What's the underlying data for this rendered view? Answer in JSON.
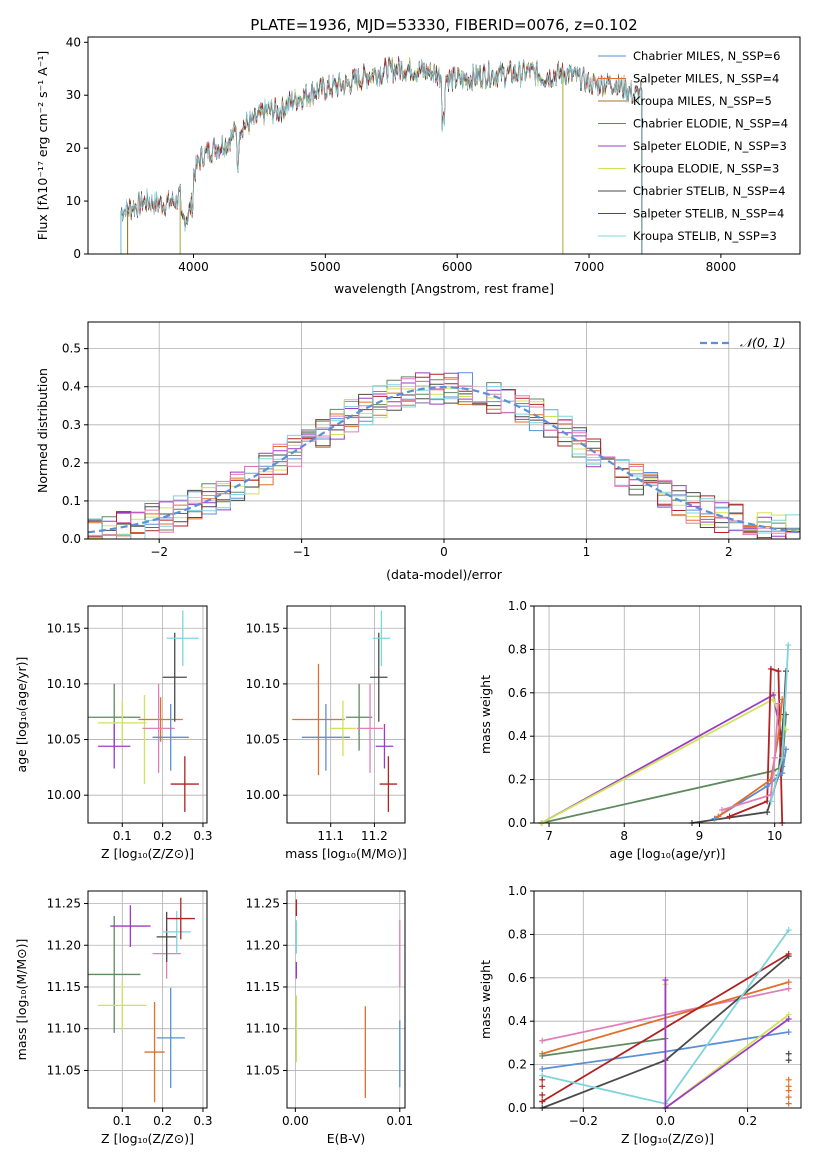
{
  "chart_data": [
    {
      "id": "spectrum",
      "type": "line",
      "title": "PLATE=1936, MJD=53330, FIBERID=0076, z=0.102",
      "xlabel": "wavelength [Angstrom, rest frame]",
      "ylabel": "Flux [fλ10⁻¹⁷ erg cm⁻² s⁻¹ A⁻¹]",
      "xlim": [
        3200,
        8600
      ],
      "ylim": [
        0,
        41
      ],
      "xticks": [
        "4000",
        "5000",
        "6000",
        "7000",
        "8000"
      ],
      "yticks": [
        "0",
        "10",
        "20",
        "30",
        "40"
      ],
      "legend_position": "right",
      "series": [
        {
          "name": "Chabrier MILES, N_SSP=6",
          "color": "#5b8fd6",
          "x_range": [
            3450,
            7400
          ]
        },
        {
          "name": "Salpeter MILES, N_SSP=4",
          "color": "#e0702a",
          "x_range": [
            3500,
            7400
          ]
        },
        {
          "name": "Kroupa MILES, N_SSP=5",
          "color": "#a07a22",
          "x_range": [
            3500,
            7400
          ]
        },
        {
          "name": "Chabrier ELODIE, N_SSP=4",
          "color": "#5e8a5e",
          "x_range": [
            3900,
            6800
          ]
        },
        {
          "name": "Salpeter ELODIE, N_SSP=3",
          "color": "#9c3cc4",
          "x_range": [
            3900,
            6800
          ]
        },
        {
          "name": "Kroupa ELODIE, N_SSP=3",
          "color": "#cfe35a",
          "x_range": [
            3900,
            6800
          ]
        },
        {
          "name": "Chabrier STELIB, N_SSP=4",
          "color": "#4a4a4a",
          "x_range": [
            3450,
            7400
          ]
        },
        {
          "name": "Salpeter STELIB, N_SSP=4",
          "color": "#b22222",
          "x_range": [
            3450,
            7400
          ]
        },
        {
          "name": "Kroupa STELIB, N_SSP=3",
          "color": "#7fd4dc",
          "x_range": [
            3450,
            7400
          ]
        }
      ],
      "continuum": {
        "x": [
          3450,
          3550,
          3650,
          3750,
          3850,
          3950,
          4050,
          4150,
          4250,
          4350,
          4450,
          4550,
          4650,
          4750,
          4850,
          4950,
          5050,
          5150,
          5250,
          5350,
          5450,
          5550,
          5650,
          5750,
          5850,
          5950,
          6050,
          6150,
          6250,
          6350,
          6450,
          6550,
          6650,
          6750,
          6850,
          6950,
          7050,
          7150,
          7250,
          7350,
          7400
        ],
        "y": [
          8,
          9,
          10,
          9.5,
          10,
          12,
          18,
          20,
          21,
          24,
          25,
          27,
          27,
          29,
          30,
          31,
          31.5,
          32,
          33,
          34,
          34.5,
          35,
          35,
          34.5,
          34,
          33,
          33,
          33.5,
          34,
          34,
          34,
          34.5,
          33.5,
          34,
          34,
          33,
          32,
          32.5,
          31.5,
          30,
          31
        ]
      }
    },
    {
      "id": "residual-histogram",
      "type": "histogram",
      "xlabel": "(data-model)/error",
      "ylabel": "Normed distribution",
      "xlim": [
        -2.5,
        2.5
      ],
      "ylim": [
        0,
        0.57
      ],
      "xticks": [
        "−2",
        "−1",
        "0",
        "1",
        "2"
      ],
      "yticks": [
        "0.0",
        "0.1",
        "0.2",
        "0.3",
        "0.4",
        "0.5"
      ],
      "grid": true,
      "legend_position": "top-right",
      "reference_curve": {
        "name": "N(0,1)",
        "legend_label": "𝒩(0, 1)",
        "color": "#5b8fd6",
        "style": "dashed",
        "mean": 0,
        "sigma": 1
      },
      "bin_width": 0.1,
      "series_colors": [
        "#5b8fd6",
        "#e0702a",
        "#5e8a5e",
        "#9c3cc4",
        "#cfe35a",
        "#4a4a4a",
        "#b22222",
        "#7fd4dc",
        "#e07fb8"
      ]
    },
    {
      "id": "age-vs-Z",
      "type": "errorbar",
      "xlabel": "Z [log₁₀(Z/Z⊙)]",
      "ylabel": "age  [log₁₀(age/yr)]",
      "xlim": [
        0.015,
        0.31
      ],
      "ylim": [
        9.975,
        10.17
      ],
      "xticks": [
        {
          "v": 0.1,
          "label": "0.1"
        },
        {
          "v": 0.2,
          "label": "0.2"
        },
        {
          "v": 0.3,
          "label": "0.3"
        }
      ],
      "yticks": [
        {
          "v": 10.0,
          "label": "10.00"
        },
        {
          "v": 10.05,
          "label": "10.05"
        },
        {
          "v": 10.1,
          "label": "10.10"
        },
        {
          "v": 10.15,
          "label": "10.15"
        }
      ],
      "grid": true,
      "points": [
        {
          "color": "#5e8a5e",
          "x": 0.08,
          "xerr": 0.065,
          "y": 10.07,
          "yerr": 0.03
        },
        {
          "color": "#cfe35a",
          "x": 0.1,
          "xerr": 0.06,
          "y": 10.065,
          "yerr": 0.02
        },
        {
          "color": "#9c3cc4",
          "x": 0.08,
          "xerr": 0.04,
          "y": 10.044,
          "yerr": 0.02
        },
        {
          "color": "#cfe35a",
          "x": 0.155,
          "xerr": 0.0,
          "y": 10.05,
          "yerr": 0.04
        },
        {
          "color": "#e0702a",
          "x": 0.195,
          "xerr": 0.055,
          "y": 10.068,
          "yerr": 0.02
        },
        {
          "color": "#e07fb8",
          "x": 0.19,
          "xerr": 0.04,
          "y": 10.06,
          "yerr": 0.04
        },
        {
          "color": "#5b8fd6",
          "x": 0.22,
          "xerr": 0.045,
          "y": 10.052,
          "yerr": 0.03
        },
        {
          "color": "#4a4a4a",
          "x": 0.23,
          "xerr": 0.03,
          "y": 10.106,
          "yerr": 0.04
        },
        {
          "color": "#7fd4dc",
          "x": 0.25,
          "xerr": 0.04,
          "y": 10.141,
          "yerr": 0.025
        },
        {
          "color": "#b22222",
          "x": 0.255,
          "xerr": 0.035,
          "y": 10.01,
          "yerr": 0.025
        }
      ]
    },
    {
      "id": "age-vs-mass",
      "type": "errorbar",
      "xlabel": "mass [log₁₀(M/M⊙)]",
      "ylabel": "",
      "xlim": [
        11.0,
        11.27
      ],
      "ylim": [
        9.975,
        10.17
      ],
      "xticks": [
        {
          "v": 11.1,
          "label": "11.1"
        },
        {
          "v": 11.2,
          "label": "11.2"
        }
      ],
      "yticks": [
        {
          "v": 10.0,
          "label": "10.00"
        },
        {
          "v": 10.05,
          "label": "10.05"
        },
        {
          "v": 10.1,
          "label": "10.10"
        },
        {
          "v": 10.15,
          "label": "10.15"
        }
      ],
      "grid": true,
      "points": [
        {
          "color": "#e0702a",
          "x": 11.072,
          "xerr": 0.06,
          "y": 10.068,
          "yerr": 0.05
        },
        {
          "color": "#5b8fd6",
          "x": 11.089,
          "xerr": 0.055,
          "y": 10.052,
          "yerr": 0.03
        },
        {
          "color": "#5e8a5e",
          "x": 11.165,
          "xerr": 0.03,
          "y": 10.07,
          "yerr": 0.03
        },
        {
          "color": "#cfe35a",
          "x": 11.128,
          "xerr": 0.03,
          "y": 10.06,
          "yerr": 0.025
        },
        {
          "color": "#e07fb8",
          "x": 11.19,
          "xerr": 0.03,
          "y": 10.06,
          "yerr": 0.04
        },
        {
          "color": "#9c3cc4",
          "x": 11.223,
          "xerr": 0.02,
          "y": 10.044,
          "yerr": 0.02
        },
        {
          "color": "#4a4a4a",
          "x": 11.21,
          "xerr": 0.02,
          "y": 10.106,
          "yerr": 0.04
        },
        {
          "color": "#7fd4dc",
          "x": 11.216,
          "xerr": 0.02,
          "y": 10.141,
          "yerr": 0.025
        },
        {
          "color": "#b22222",
          "x": 11.232,
          "xerr": 0.02,
          "y": 10.01,
          "yerr": 0.025
        }
      ]
    },
    {
      "id": "mass-weight-vs-age",
      "type": "line",
      "xlabel": "age  [log₁₀(age/yr)]",
      "ylabel": "mass weight",
      "xlim": [
        6.8,
        10.35
      ],
      "ylim": [
        0.0,
        1.0
      ],
      "xticks": [
        {
          "v": 7,
          "label": "7"
        },
        {
          "v": 8,
          "label": "8"
        },
        {
          "v": 9,
          "label": "9"
        },
        {
          "v": 10,
          "label": "10"
        }
      ],
      "yticks": [
        {
          "v": 0,
          "label": "0.0"
        },
        {
          "v": 0.2,
          "label": "0.2"
        },
        {
          "v": 0.4,
          "label": "0.4"
        },
        {
          "v": 0.6,
          "label": "0.6"
        },
        {
          "v": 0.8,
          "label": "0.8"
        },
        {
          "v": 1.0,
          "label": "1.0"
        }
      ],
      "grid": true,
      "series": [
        {
          "color": "#5e8a5e",
          "x": [
            6.9,
            9.98,
            10.1,
            10.15
          ],
          "y": [
            0.0,
            0.24,
            0.26,
            0.5
          ]
        },
        {
          "color": "#9c3cc4",
          "x": [
            6.9,
            9.98,
            10.08
          ],
          "y": [
            0.0,
            0.59,
            0.41
          ]
        },
        {
          "color": "#cfe35a",
          "x": [
            6.9,
            9.98,
            10.15
          ],
          "y": [
            0.0,
            0.57,
            0.43
          ]
        },
        {
          "color": "#4a4a4a",
          "x": [
            8.9,
            9.9,
            10.05,
            10.12,
            10.15
          ],
          "y": [
            0.0,
            0.05,
            0.22,
            0.5,
            0.7
          ]
        },
        {
          "color": "#b22222",
          "x": [
            9.4,
            9.9,
            9.95,
            10.05,
            10.1
          ],
          "y": [
            0.03,
            0.1,
            0.71,
            0.7,
            0.0
          ]
        },
        {
          "color": "#5b8fd6",
          "x": [
            9.2,
            9.9,
            10.1,
            10.15
          ],
          "y": [
            0.02,
            0.17,
            0.23,
            0.34
          ]
        },
        {
          "color": "#e0702a",
          "x": [
            9.25,
            9.95,
            10.05,
            10.1
          ],
          "y": [
            0.03,
            0.2,
            0.4,
            0.57
          ]
        },
        {
          "color": "#e07fb8",
          "x": [
            9.3,
            9.95,
            10.0,
            10.05
          ],
          "y": [
            0.06,
            0.13,
            0.3,
            0.55
          ]
        },
        {
          "color": "#7fd4dc",
          "x": [
            9.95,
            10.1,
            10.18
          ],
          "y": [
            0.1,
            0.3,
            0.82
          ]
        }
      ]
    },
    {
      "id": "mass-vs-Z",
      "type": "errorbar",
      "xlabel": "Z [log₁₀(Z/Z⊙)]",
      "ylabel": "mass [log₁₀(M/M⊙)]",
      "xlim": [
        0.015,
        0.31
      ],
      "ylim": [
        11.005,
        11.265
      ],
      "xticks": [
        {
          "v": 0.1,
          "label": "0.1"
        },
        {
          "v": 0.2,
          "label": "0.2"
        },
        {
          "v": 0.3,
          "label": "0.3"
        }
      ],
      "yticks": [
        {
          "v": 11.05,
          "label": "11.05"
        },
        {
          "v": 11.1,
          "label": "11.10"
        },
        {
          "v": 11.15,
          "label": "11.15"
        },
        {
          "v": 11.2,
          "label": "11.20"
        },
        {
          "v": 11.25,
          "label": "11.25"
        }
      ],
      "grid": true,
      "points": [
        {
          "color": "#5e8a5e",
          "x": 0.08,
          "xerr": 0.065,
          "y": 11.165,
          "yerr": 0.07
        },
        {
          "color": "#cfe35a",
          "x": 0.1,
          "xerr": 0.06,
          "y": 11.128,
          "yerr": 0.03
        },
        {
          "color": "#9c3cc4",
          "x": 0.12,
          "xerr": 0.05,
          "y": 11.223,
          "yerr": 0.025
        },
        {
          "color": "#e0702a",
          "x": 0.18,
          "xerr": 0.025,
          "y": 11.072,
          "yerr": 0.06
        },
        {
          "color": "#5b8fd6",
          "x": 0.22,
          "xerr": 0.035,
          "y": 11.089,
          "yerr": 0.06
        },
        {
          "color": "#e07fb8",
          "x": 0.21,
          "xerr": 0.035,
          "y": 11.19,
          "yerr": 0.03
        },
        {
          "color": "#4a4a4a",
          "x": 0.21,
          "xerr": 0.025,
          "y": 11.21,
          "yerr": 0.03
        },
        {
          "color": "#7fd4dc",
          "x": 0.235,
          "xerr": 0.035,
          "y": 11.216,
          "yerr": 0.025
        },
        {
          "color": "#b22222",
          "x": 0.245,
          "xerr": 0.035,
          "y": 11.232,
          "yerr": 0.025
        }
      ]
    },
    {
      "id": "mass-vs-ebv",
      "type": "errorbar",
      "xlabel": "E(B-V)",
      "ylabel": "",
      "xlim": [
        -0.0008,
        0.0105
      ],
      "ylim": [
        11.005,
        11.265
      ],
      "xticks": [
        {
          "v": 0.0,
          "label": "0.00"
        },
        {
          "v": 0.01,
          "label": "0.01"
        }
      ],
      "yticks": [
        {
          "v": 11.05,
          "label": "11.05"
        },
        {
          "v": 11.1,
          "label": "11.10"
        },
        {
          "v": 11.15,
          "label": "11.15"
        },
        {
          "v": 11.2,
          "label": "11.20"
        },
        {
          "v": 11.25,
          "label": "11.25"
        }
      ],
      "grid": true,
      "points": [
        {
          "color": "#b22222",
          "x": 0.0001,
          "xerr": 0,
          "y": 11.245,
          "yerr": 0.01
        },
        {
          "color": "#9c3cc4",
          "x": 0.0001,
          "xerr": 0,
          "y": 11.17,
          "yerr": 0.01
        },
        {
          "color": "#cfe35a",
          "x": 0.0001,
          "xerr": 0,
          "y": 11.1,
          "yerr": 0.04
        },
        {
          "color": "#7fd4dc",
          "x": 0.0001,
          "xerr": 0,
          "y": 11.21,
          "yerr": 0.02
        },
        {
          "color": "#e0702a",
          "x": 0.0067,
          "xerr": 0,
          "y": 11.072,
          "yerr": 0.055
        },
        {
          "color": "#e07fb8",
          "x": 0.01,
          "xerr": 0,
          "y": 11.19,
          "yerr": 0.04
        },
        {
          "color": "#5b8fd6",
          "x": 0.01,
          "xerr": 0,
          "y": 11.07,
          "yerr": 0.04
        }
      ]
    },
    {
      "id": "mass-weight-vs-Z",
      "type": "line",
      "xlabel": "Z [log₁₀(Z/Z⊙)]",
      "ylabel": "mass weight",
      "xlim": [
        -0.32,
        0.33
      ],
      "ylim": [
        0.0,
        1.0
      ],
      "xticks": [
        {
          "v": -0.2,
          "label": "−0.2"
        },
        {
          "v": 0.0,
          "label": "0.0"
        },
        {
          "v": 0.2,
          "label": "0.2"
        }
      ],
      "yticks": [
        {
          "v": 0,
          "label": "0.0"
        },
        {
          "v": 0.2,
          "label": "0.2"
        },
        {
          "v": 0.4,
          "label": "0.4"
        },
        {
          "v": 0.6,
          "label": "0.6"
        },
        {
          "v": 0.8,
          "label": "0.8"
        },
        {
          "v": 1.0,
          "label": "1.0"
        }
      ],
      "grid": true,
      "series": [
        {
          "color": "#e07fb8",
          "x": [
            -0.3,
            0.3
          ],
          "y": [
            0.31,
            0.55
          ]
        },
        {
          "color": "#e0702a",
          "x": [
            -0.3,
            0.3
          ],
          "y": [
            0.25,
            0.58
          ]
        },
        {
          "color": "#5e8a5e",
          "x": [
            -0.3,
            0.0
          ],
          "y": [
            0.24,
            0.32
          ]
        },
        {
          "color": "#5b8fd6",
          "x": [
            -0.3,
            0.0,
            0.3
          ],
          "y": [
            0.18,
            0.26,
            0.35
          ]
        },
        {
          "color": "#4a4a4a",
          "x": [
            -0.3,
            0.0,
            0.3
          ],
          "y": [
            0.0,
            0.22,
            0.7
          ]
        },
        {
          "color": "#b22222",
          "x": [
            -0.3,
            0.3
          ],
          "y": [
            0.03,
            0.71
          ]
        },
        {
          "color": "#7fd4dc",
          "x": [
            -0.3,
            0.0,
            0.3
          ],
          "y": [
            0.15,
            0.02,
            0.82
          ]
        },
        {
          "color": "#cfe35a",
          "x": [
            0.0,
            0.0,
            0.3
          ],
          "y": [
            0.57,
            0.0,
            0.43
          ]
        },
        {
          "color": "#9c3cc4",
          "x": [
            0.0,
            0.0,
            0.3
          ],
          "y": [
            0.59,
            0.0,
            0.41
          ]
        }
      ],
      "edge_markers": [
        {
          "x": -0.3,
          "color": "#b22222",
          "y": [
            0.03,
            0.06,
            0.1,
            0.13
          ]
        },
        {
          "x": 0.3,
          "color": "#e0702a",
          "y": [
            0.02,
            0.05,
            0.08,
            0.1,
            0.13
          ]
        },
        {
          "x": 0.3,
          "color": "#4a4a4a",
          "y": [
            0.22,
            0.25
          ]
        }
      ]
    }
  ]
}
